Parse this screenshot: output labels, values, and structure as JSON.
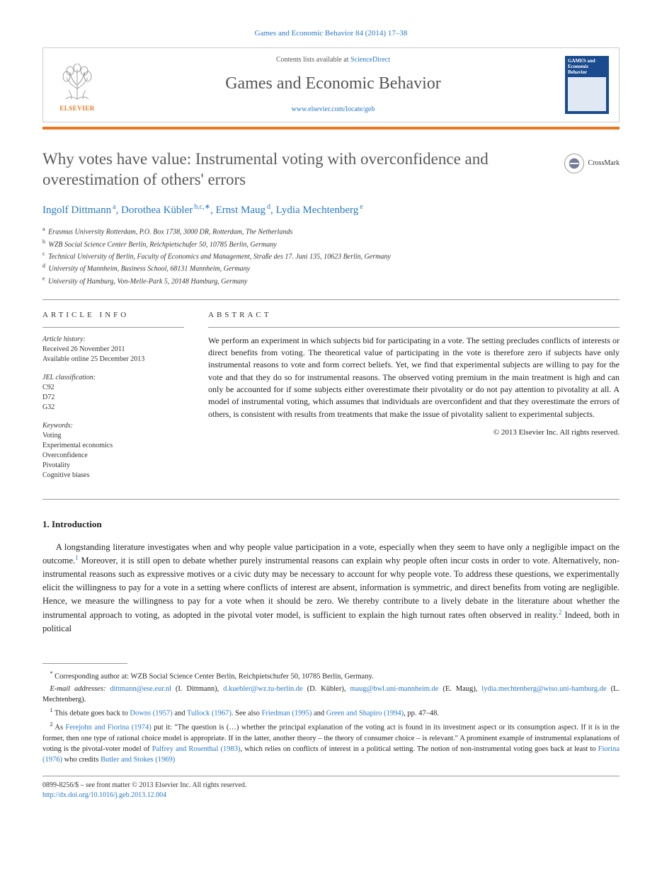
{
  "header_citation": "Games and Economic Behavior 84 (2014) 17–38",
  "journal_box": {
    "contents_prefix": "Contents lists available at ",
    "contents_link": "ScienceDirect",
    "journal_name": "Games and Economic Behavior",
    "journal_url": "www.elsevier.com/locate/geb",
    "publisher_name": "ELSEVIER",
    "cover_title_a": "GAMES and",
    "cover_title_b": "Economic",
    "cover_title_c": "Behavior"
  },
  "crossmark_label": "CrossMark",
  "title": "Why votes have value: Instrumental voting with overconfidence and overestimation of others' errors",
  "authors": [
    {
      "name": "Ingolf Dittmann",
      "sup": "a"
    },
    {
      "name": "Dorothea Kübler",
      "sup": "b,c,∗"
    },
    {
      "name": "Ernst Maug",
      "sup": "d"
    },
    {
      "name": "Lydia Mechtenberg",
      "sup": "e"
    }
  ],
  "affiliations": [
    {
      "sup": "a",
      "text": "Erasmus University Rotterdam, P.O. Box 1738, 3000 DR, Rotterdam, The Netherlands"
    },
    {
      "sup": "b",
      "text": "WZB Social Science Center Berlin, Reichpietschufer 50, 10785 Berlin, Germany"
    },
    {
      "sup": "c",
      "text": "Technical University of Berlin, Faculty of Economics and Management, Straße des 17. Juni 135, 10623 Berlin, Germany"
    },
    {
      "sup": "d",
      "text": "University of Mannheim, Business School, 68131 Mannheim, Germany"
    },
    {
      "sup": "e",
      "text": "University of Hamburg, Von-Melle-Park 5, 20148 Hamburg, Germany"
    }
  ],
  "article_info": {
    "header": "article info",
    "history_label": "Article history:",
    "received": "Received 26 November 2011",
    "online": "Available online 25 December 2013",
    "jel_label": "JEL classification:",
    "jel": [
      "C92",
      "D72",
      "G32"
    ],
    "keywords_label": "Keywords:",
    "keywords": [
      "Voting",
      "Experimental economics",
      "Overconfidence",
      "Pivotality",
      "Cognitive biases"
    ]
  },
  "abstract": {
    "header": "abstract",
    "text": "We perform an experiment in which subjects bid for participating in a vote. The setting precludes conflicts of interests or direct benefits from voting. The theoretical value of participating in the vote is therefore zero if subjects have only instrumental reasons to vote and form correct beliefs. Yet, we find that experimental subjects are willing to pay for the vote and that they do so for instrumental reasons. The observed voting premium in the main treatment is high and can only be accounted for if some subjects either overestimate their pivotality or do not pay attention to pivotality at all. A model of instrumental voting, which assumes that individuals are overconfident and that they overestimate the errors of others, is consistent with results from treatments that make the issue of pivotality salient to experimental subjects.",
    "copyright": "© 2013 Elsevier Inc. All rights reserved."
  },
  "section_1": {
    "heading": "1. Introduction",
    "para_1_part1": "A longstanding literature investigates when and why people value participation in a vote, especially when they seem to have only a negligible impact on the outcome.",
    "fn1_sup": "1",
    "para_1_part2": " Moreover, it is still open to debate whether purely instrumental reasons can explain why people often incur costs in order to vote. Alternatively, non-instrumental reasons such as expressive motives or a civic duty may be necessary to account for why people vote. To address these questions, we experimentally elicit the willingness to pay for a vote in a setting where conflicts of interest are absent, information is symmetric, and direct benefits from voting are negligible. Hence, we measure the willingness to pay for a vote when it should be zero. We thereby contribute to a lively debate in the literature about whether the instrumental approach to voting, as adopted in the pivotal voter model, is sufficient to explain the high turnout rates often observed in reality.",
    "fn2_sup": "2",
    "para_1_part3": " Indeed, both in political"
  },
  "footnotes": {
    "corresponding_label": "*",
    "corresponding_text": "Corresponding author at: WZB Social Science Center Berlin, Reichpietschufer 50, 10785 Berlin, Germany.",
    "email_label": "E-mail addresses:",
    "emails": [
      {
        "addr": "dittmann@ese.eur.nl",
        "person": "(I. Dittmann)"
      },
      {
        "addr": "d.kuebler@wz.tu-berlin.de",
        "person": "(D. Kübler)"
      },
      {
        "addr": "maug@bwl.uni-mannheim.de",
        "person": "(E. Maug)"
      },
      {
        "addr": "lydia.mechtenberg@wiso.uni-hamburg.de",
        "person": "(L. Mechtenberg)"
      }
    ],
    "fn1_prefix": "This debate goes back to ",
    "fn1_link1": "Downs (1957)",
    "fn1_mid1": " and ",
    "fn1_link2": "Tullock (1967)",
    "fn1_mid2": ". See also ",
    "fn1_link3": "Friedman (1995)",
    "fn1_mid3": " and ",
    "fn1_link4": "Green and Shapiro (1994)",
    "fn1_suffix": ", pp. 47–48.",
    "fn2_prefix": "As ",
    "fn2_link1": "Ferejohn and Fiorina (1974)",
    "fn2_mid1": " put it: \"The question is (…) whether the principal explanation of the voting act is found in its investment aspect or its consumption aspect. If it is in the former, then one type of rational choice model is appropriate. If in the latter, another theory – the theory of consumer choice – is relevant.\" A prominent example of instrumental explanations of voting is the pivotal-voter model of ",
    "fn2_link2": "Palfrey and Rosenthal (1983)",
    "fn2_mid2": ", which relies on conflicts of interest in a political setting. The notion of non-instrumental voting goes back at least to ",
    "fn2_link3": "Fiorina (1976)",
    "fn2_mid3": " who credits ",
    "fn2_link4": "Butler and Stokes (1969)"
  },
  "footer": {
    "issn_line": "0899-8256/$ – see front matter © 2013 Elsevier Inc. All rights reserved.",
    "doi": "http://dx.doi.org/10.1016/j.geb.2013.12.004"
  },
  "colors": {
    "link": "#2878c4",
    "orange": "#e87722",
    "navy": "#1a4b8e"
  }
}
